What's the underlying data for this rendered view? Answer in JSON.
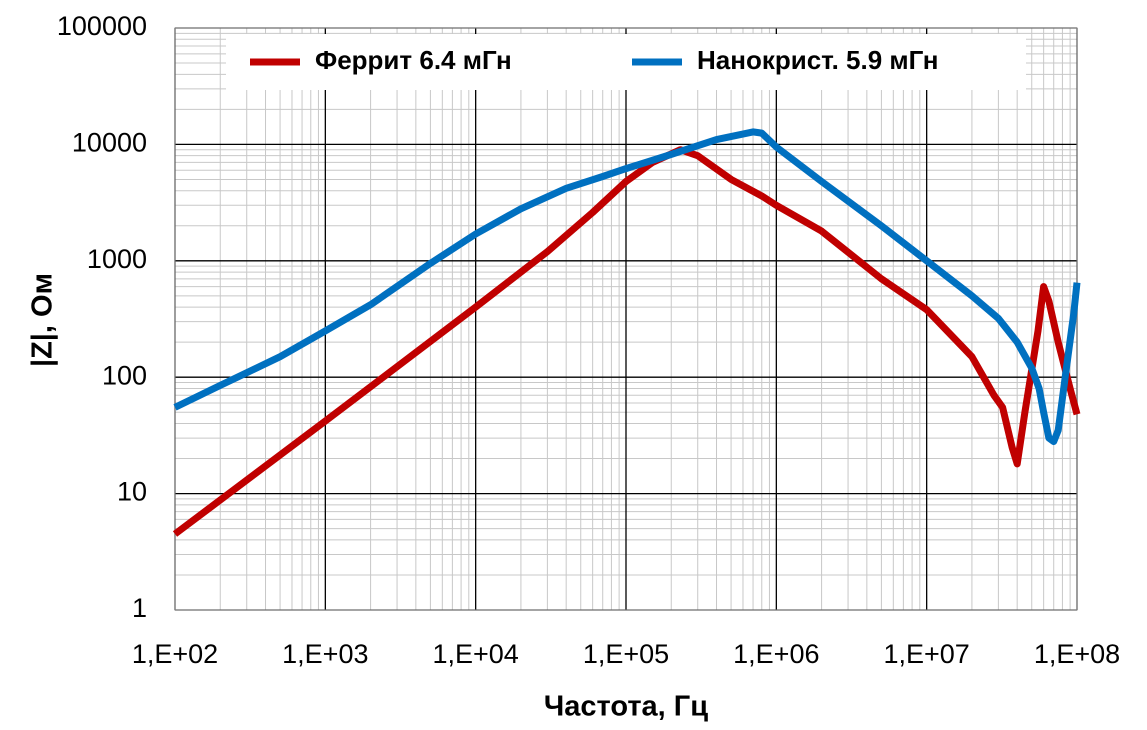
{
  "chart_data": {
    "type": "line",
    "x_label": "Частота, Гц",
    "y_label": "|Z|, Ом",
    "log_x": true,
    "log_y": true,
    "grid": true,
    "legend": "top",
    "xlim": [
      100,
      100000000
    ],
    "xticks": [
      {
        "value": 100,
        "label": "1,E+02"
      },
      {
        "value": 1000,
        "label": "1,E+03"
      },
      {
        "value": 10000,
        "label": "1,E+04"
      },
      {
        "value": 100000,
        "label": "1,E+05"
      },
      {
        "value": 1000000,
        "label": "1,E+06"
      },
      {
        "value": 10000000,
        "label": "1,E+07"
      },
      {
        "value": 100000000,
        "label": "1,E+08"
      }
    ],
    "ylim": [
      1,
      100000
    ],
    "yticks": [
      1,
      10,
      100,
      1000,
      10000,
      100000
    ],
    "series": [
      {
        "name": "Феррит  6.4 мГн",
        "color": "#c00000",
        "x": [
          100,
          1000,
          10000,
          30000,
          60000,
          100000,
          150000,
          230000,
          300000,
          500000,
          800000,
          1000000,
          2000000,
          5000000,
          10000000,
          20000000,
          28000000,
          32000000,
          37000000,
          40000000,
          45000000,
          55000000,
          60000000,
          65000000,
          75000000,
          90000000,
          100000000
        ],
        "values": [
          4.5,
          42,
          400,
          1200,
          2600,
          4800,
          7000,
          9000,
          8000,
          5000,
          3600,
          3000,
          1800,
          700,
          380,
          150,
          70,
          55,
          25,
          18,
          50,
          250,
          600,
          450,
          200,
          80,
          48
        ]
      },
      {
        "name": "Нанокрист.  5.9 мГн",
        "color": "#0070c0",
        "x": [
          100,
          200,
          500,
          1000,
          2000,
          5000,
          10000,
          20000,
          40000,
          70000,
          100000,
          200000,
          400000,
          700000,
          800000,
          1000000,
          2000000,
          5000000,
          10000000,
          20000000,
          30000000,
          40000000,
          50000000,
          56000000,
          60000000,
          65000000,
          70000000,
          75000000,
          85000000,
          95000000,
          100000000
        ],
        "values": [
          55,
          85,
          150,
          250,
          420,
          950,
          1700,
          2800,
          4200,
          5300,
          6200,
          8200,
          11000,
          12800,
          12500,
          9500,
          4800,
          2000,
          1000,
          500,
          320,
          200,
          120,
          80,
          50,
          30,
          28,
          35,
          120,
          350,
          650
        ]
      }
    ]
  }
}
